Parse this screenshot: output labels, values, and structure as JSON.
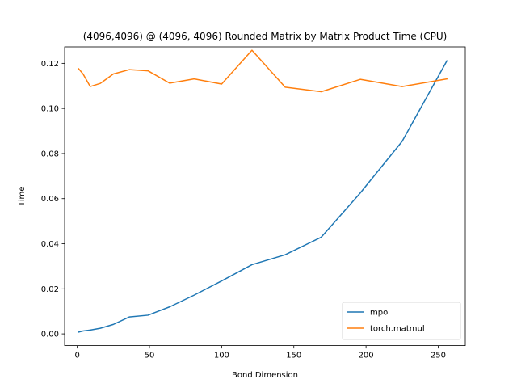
{
  "chart_data": {
    "type": "line",
    "title": "(4096,4096) @ (4096, 4096) Rounded Matrix by Matrix Product Time (CPU)",
    "xlabel": "Bond Dimension",
    "ylabel": "Time",
    "xlim": [
      -8.75,
      268.75
    ],
    "ylim": [
      -0.0052,
      0.1273
    ],
    "xticks": [
      0,
      50,
      100,
      150,
      200,
      250
    ],
    "xtick_labels": [
      "0",
      "50",
      "100",
      "150",
      "200",
      "250"
    ],
    "yticks": [
      0.0,
      0.02,
      0.04,
      0.06,
      0.08,
      0.1,
      0.12
    ],
    "ytick_labels": [
      "0.00",
      "0.02",
      "0.04",
      "0.06",
      "0.08",
      "0.10",
      "0.12"
    ],
    "grid": false,
    "legend_position": "lower-right",
    "series": [
      {
        "name": "mpo",
        "color": "#1f77b4",
        "x": [
          1,
          4,
          9,
          16,
          25,
          36,
          49,
          64,
          81,
          100,
          121,
          144,
          169,
          196,
          225,
          256
        ],
        "y": [
          0.0008,
          0.0013,
          0.0017,
          0.0025,
          0.0042,
          0.0075,
          0.0083,
          0.012,
          0.0172,
          0.0235,
          0.0307,
          0.0351,
          0.0429,
          0.0625,
          0.0854,
          0.1211
        ]
      },
      {
        "name": "torch.matmul",
        "color": "#ff7f0e",
        "x": [
          1,
          4,
          9,
          16,
          25,
          36,
          49,
          64,
          81,
          100,
          121,
          144,
          169,
          196,
          225,
          256
        ],
        "y": [
          0.1176,
          0.1153,
          0.1097,
          0.1111,
          0.1153,
          0.1172,
          0.1167,
          0.1112,
          0.1131,
          0.1108,
          0.1258,
          0.1094,
          0.1074,
          0.1129,
          0.1097,
          0.1131
        ]
      }
    ]
  }
}
